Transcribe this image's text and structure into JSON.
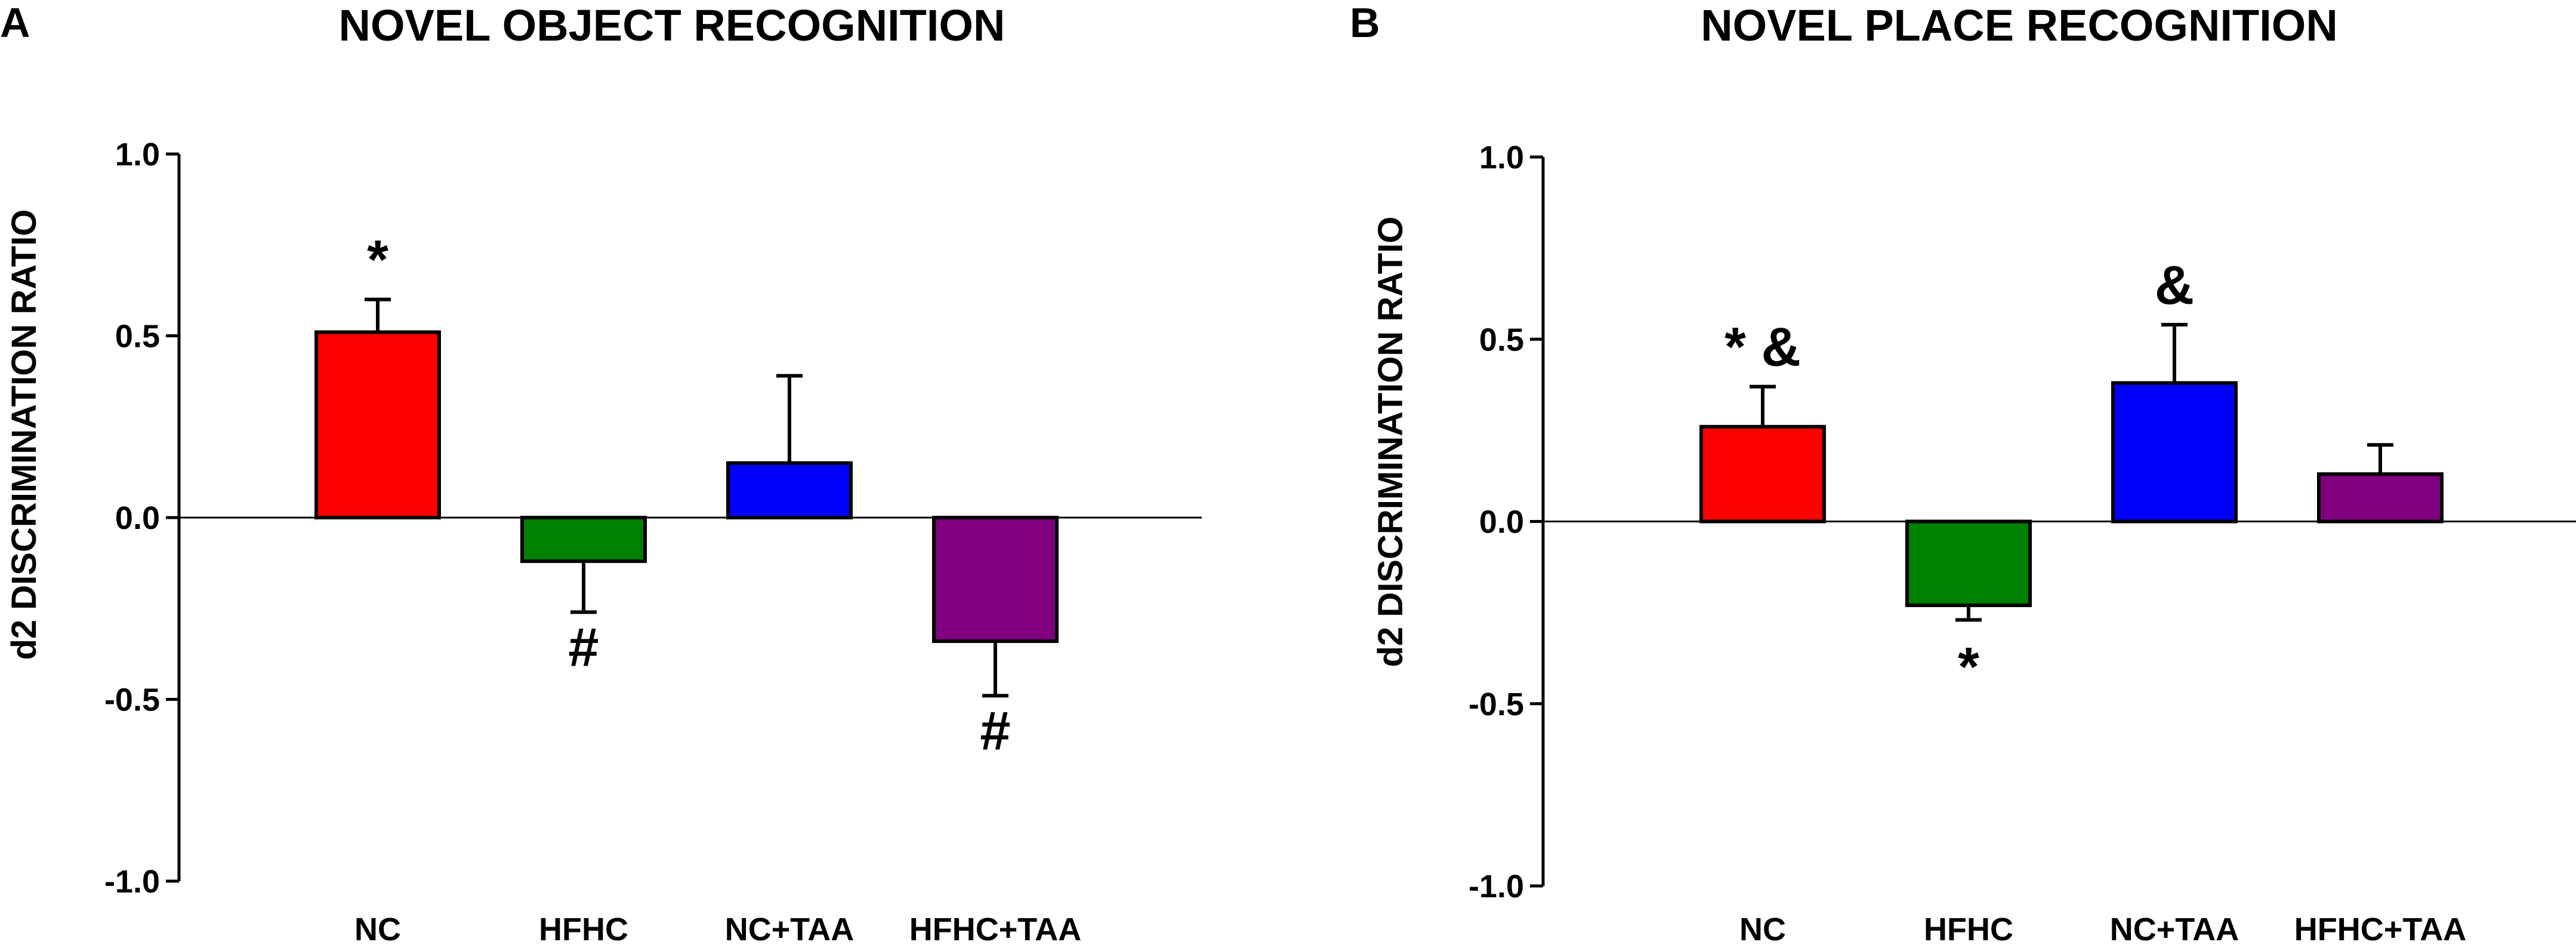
{
  "chart_data": [
    {
      "type": "bar",
      "panel_letter": "A",
      "title": "NOVEL OBJECT RECOGNITION",
      "ylabel": "d2 DISCRIMINATION RATIO",
      "xlabel": "",
      "ylim": [
        -1.0,
        1.0
      ],
      "yticks": [
        1.0,
        0.5,
        0.0,
        -0.5,
        -1.0
      ],
      "ytick_labels": [
        "1.0",
        "0.5",
        "0.0",
        "-0.5",
        "-1.0"
      ],
      "categories": [
        "NC",
        "HFHC",
        "NC+TAA",
        "HFHC+TAA"
      ],
      "values": [
        0.51,
        -0.12,
        0.15,
        -0.34
      ],
      "errors": [
        0.09,
        0.14,
        0.24,
        0.15
      ],
      "colors": [
        "#ff0000",
        "#008000",
        "#0000ff",
        "#800080"
      ],
      "annotations": [
        "*",
        "#",
        "",
        "#"
      ]
    },
    {
      "type": "bar",
      "panel_letter": "B",
      "title": "NOVEL PLACE RECOGNITION",
      "ylabel": "d2 DISCRIMINATION RATIO",
      "xlabel": "",
      "ylim": [
        -1.0,
        1.0
      ],
      "yticks": [
        1.0,
        0.5,
        0.0,
        -0.5,
        -1.0
      ],
      "ytick_labels": [
        "1.0",
        "0.5",
        "0.0",
        "-0.5",
        "-1.0"
      ],
      "categories": [
        "NC",
        "HFHC",
        "NC+TAA",
        "HFHC+TAA"
      ],
      "values": [
        0.26,
        -0.23,
        0.38,
        0.13
      ],
      "errors": [
        0.11,
        0.04,
        0.16,
        0.08
      ],
      "colors": [
        "#ff0000",
        "#008000",
        "#0000ff",
        "#800080"
      ],
      "annotations": [
        "* &",
        "*",
        "&",
        ""
      ]
    }
  ]
}
